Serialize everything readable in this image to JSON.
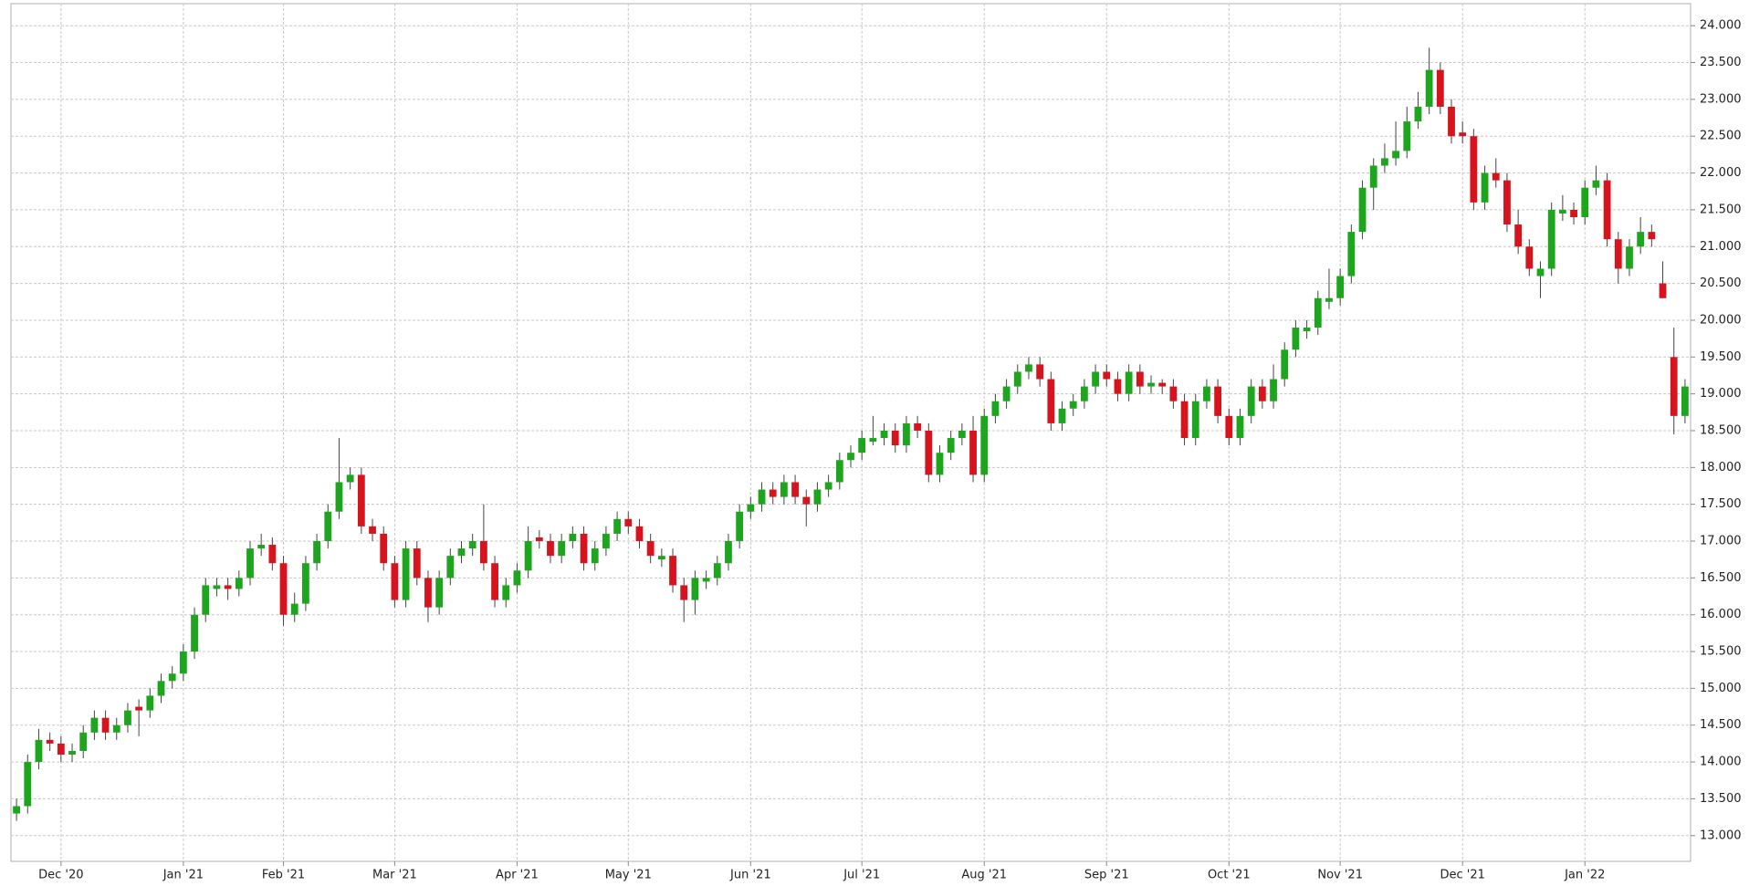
{
  "chart_data": {
    "type": "candlestick",
    "up_color": "#1ea51e",
    "down_color": "#d7141e",
    "grid": true,
    "categories": [
      null,
      null,
      null,
      null,
      "Dec '20",
      null,
      null,
      null,
      null,
      null,
      null,
      null,
      null,
      null,
      null,
      "Jan '21",
      null,
      null,
      null,
      null,
      null,
      null,
      null,
      null,
      "Feb '21",
      null,
      null,
      null,
      null,
      null,
      null,
      null,
      null,
      null,
      "Mar '21",
      null,
      null,
      null,
      null,
      null,
      null,
      null,
      null,
      null,
      null,
      "Apr '21",
      null,
      null,
      null,
      null,
      null,
      null,
      null,
      null,
      null,
      "May '21",
      null,
      null,
      null,
      null,
      null,
      null,
      null,
      null,
      null,
      null,
      "Jun '21",
      null,
      null,
      null,
      null,
      null,
      null,
      null,
      null,
      null,
      "Jul '21",
      null,
      null,
      null,
      null,
      null,
      null,
      null,
      null,
      null,
      null,
      "Aug '21",
      null,
      null,
      null,
      null,
      null,
      null,
      null,
      null,
      null,
      null,
      "Sep '21",
      null,
      null,
      null,
      null,
      null,
      null,
      null,
      null,
      null,
      null,
      "Oct '21",
      null,
      null,
      null,
      null,
      null,
      null,
      null,
      null,
      null,
      "Nov '21",
      null,
      null,
      null,
      null,
      null,
      null,
      null,
      null,
      null,
      null,
      "Dec '21",
      null,
      null,
      null,
      null,
      null,
      null,
      null,
      null,
      null,
      null,
      "Jan '22",
      null,
      null,
      null,
      null,
      null,
      null,
      null,
      null,
      null
    ],
    "open": [
      13300,
      13400,
      14000,
      14300,
      14250,
      14100,
      14150,
      14400,
      14600,
      14400,
      14500,
      14750,
      14700,
      14900,
      15100,
      15200,
      15500,
      16000,
      16350,
      16400,
      16350,
      16500,
      16900,
      16950,
      16700,
      16000,
      16150,
      16700,
      17000,
      17400,
      17800,
      17900,
      17200,
      17100,
      16700,
      16200,
      16900,
      16500,
      16100,
      16500,
      16800,
      16900,
      17000,
      16700,
      16200,
      16400,
      16600,
      17050,
      17000,
      16800,
      17000,
      17100,
      16700,
      16900,
      17100,
      17300,
      17200,
      17000,
      16750,
      16800,
      16400,
      16200,
      16450,
      16500,
      16700,
      17000,
      17400,
      17500,
      17700,
      17600,
      17800,
      17600,
      17500,
      17700,
      17800,
      18100,
      18200,
      18350,
      18400,
      18500,
      18300,
      18600,
      18500,
      17900,
      18200,
      18400,
      18500,
      17900,
      18700,
      18900,
      19100,
      19300,
      19400,
      19200,
      18600,
      18800,
      18900,
      19100,
      19300,
      19200,
      19000,
      19300,
      19100,
      19150,
      19100,
      18900,
      18400,
      18900,
      19100,
      18700,
      18400,
      18700,
      19100,
      18900,
      19200,
      19600,
      19850,
      19900,
      20250,
      20300,
      20600,
      21200,
      21800,
      22100,
      22200,
      22300,
      22700,
      22900,
      23400,
      22900,
      22550,
      22500,
      21600,
      22000,
      21900,
      21300,
      21000,
      20600,
      20700,
      21450,
      21500,
      21400,
      21800,
      21900,
      21100,
      20700,
      21000,
      21200,
      20500,
      19500,
      18700
    ],
    "high": [
      13500,
      14100,
      14450,
      14400,
      14350,
      14250,
      14500,
      14700,
      14700,
      14600,
      14800,
      14850,
      15000,
      15200,
      15300,
      15600,
      16100,
      16500,
      16500,
      16500,
      16600,
      17000,
      17100,
      17050,
      16800,
      16300,
      16800,
      17100,
      17500,
      18400,
      18000,
      18000,
      17300,
      17200,
      16800,
      17000,
      17000,
      16600,
      16600,
      16900,
      17000,
      17100,
      17500,
      16800,
      16500,
      16700,
      17200,
      17150,
      17100,
      17100,
      17200,
      17200,
      17000,
      17200,
      17400,
      17400,
      17300,
      17100,
      16900,
      16900,
      16500,
      16600,
      16600,
      16800,
      17100,
      17500,
      17600,
      17800,
      17800,
      17900,
      17900,
      17700,
      17800,
      17900,
      18200,
      18300,
      18500,
      18700,
      18600,
      18600,
      18700,
      18700,
      18600,
      18300,
      18500,
      18600,
      18700,
      18800,
      19000,
      19200,
      19400,
      19500,
      19500,
      19300,
      18900,
      19000,
      19200,
      19400,
      19400,
      19300,
      19400,
      19400,
      19250,
      19200,
      19200,
      19000,
      19000,
      19200,
      19200,
      18800,
      18800,
      19200,
      19200,
      19400,
      19700,
      20000,
      20000,
      20400,
      20700,
      20700,
      21300,
      21900,
      22200,
      22400,
      22700,
      22900,
      23100,
      23700,
      23500,
      23000,
      22700,
      22600,
      22100,
      22200,
      22000,
      21500,
      21100,
      20800,
      21600,
      21700,
      21600,
      21900,
      22100,
      22000,
      21200,
      21100,
      21400,
      21300,
      20800,
      19900,
      19200
    ],
    "low": [
      13200,
      13300,
      13900,
      14150,
      14000,
      14000,
      14050,
      14300,
      14300,
      14300,
      14400,
      14350,
      14600,
      14800,
      15000,
      15100,
      15400,
      15900,
      16250,
      16200,
      16250,
      16400,
      16800,
      16600,
      15850,
      15900,
      16050,
      16600,
      16900,
      17300,
      17700,
      17100,
      17000,
      16600,
      16100,
      16100,
      16400,
      15900,
      16000,
      16400,
      16700,
      16800,
      16600,
      16100,
      16100,
      16300,
      16500,
      16900,
      16700,
      16700,
      16900,
      16600,
      16600,
      16800,
      17000,
      17100,
      16900,
      16700,
      16650,
      16300,
      15900,
      16000,
      16350,
      16400,
      16600,
      16900,
      17300,
      17400,
      17500,
      17500,
      17500,
      17200,
      17400,
      17600,
      17700,
      18000,
      18100,
      18300,
      18300,
      18200,
      18200,
      18400,
      17800,
      17800,
      18100,
      18300,
      17800,
      17800,
      18600,
      18800,
      19000,
      19200,
      19100,
      18500,
      18500,
      18700,
      18800,
      19000,
      19100,
      18900,
      18900,
      19000,
      19000,
      19000,
      18800,
      18300,
      18300,
      18800,
      18600,
      18300,
      18300,
      18600,
      18800,
      18800,
      19100,
      19500,
      19750,
      19800,
      20150,
      20200,
      20500,
      21100,
      21500,
      22000,
      22100,
      22200,
      22600,
      22800,
      22800,
      22400,
      22400,
      21500,
      21500,
      21800,
      21200,
      20900,
      20600,
      20300,
      20600,
      21350,
      21300,
      21300,
      21700,
      21000,
      20500,
      20600,
      20900,
      21000,
      20300,
      18450,
      18600
    ],
    "close": [
      13400,
      14000,
      14300,
      14250,
      14100,
      14150,
      14400,
      14600,
      14400,
      14500,
      14700,
      14700,
      14900,
      15100,
      15200,
      15500,
      16000,
      16400,
      16400,
      16350,
      16500,
      16900,
      16950,
      16700,
      16000,
      16150,
      16700,
      17000,
      17400,
      17800,
      17900,
      17200,
      17100,
      16700,
      16200,
      16900,
      16500,
      16100,
      16500,
      16800,
      16900,
      17000,
      16700,
      16200,
      16400,
      16600,
      17000,
      17000,
      16800,
      17000,
      17100,
      16700,
      16900,
      17100,
      17300,
      17200,
      17000,
      16800,
      16800,
      16400,
      16200,
      16500,
      16500,
      16700,
      17000,
      17400,
      17500,
      17700,
      17600,
      17800,
      17600,
      17500,
      17700,
      17800,
      18100,
      18200,
      18400,
      18400,
      18500,
      18300,
      18600,
      18500,
      17900,
      18200,
      18400,
      18500,
      17900,
      18700,
      18900,
      19100,
      19300,
      19400,
      19200,
      18600,
      18800,
      18900,
      19100,
      19300,
      19200,
      19000,
      19300,
      19100,
      19150,
      19100,
      18900,
      18400,
      18900,
      19100,
      18700,
      18400,
      18700,
      19100,
      18900,
      19200,
      19600,
      19900,
      19900,
      20300,
      20300,
      20600,
      21200,
      21800,
      22100,
      22200,
      22300,
      22700,
      22900,
      23400,
      22900,
      22500,
      22500,
      21600,
      22000,
      21900,
      21300,
      21000,
      20700,
      20700,
      21500,
      21500,
      21400,
      21800,
      21900,
      21100,
      20700,
      21000,
      21200,
      21100,
      20300,
      18700,
      19100
    ],
    "ylim": [
      12650,
      24300
    ],
    "yticks": [
      {
        "value": 13000,
        "label": "13.000"
      },
      {
        "value": 13500,
        "label": "13.500"
      },
      {
        "value": 14000,
        "label": "14.000"
      },
      {
        "value": 14500,
        "label": "14.500"
      },
      {
        "value": 15000,
        "label": "15.000"
      },
      {
        "value": 15500,
        "label": "15.500"
      },
      {
        "value": 16000,
        "label": "16.000"
      },
      {
        "value": 16500,
        "label": "16.500"
      },
      {
        "value": 17000,
        "label": "17.000"
      },
      {
        "value": 17500,
        "label": "17.500"
      },
      {
        "value": 18000,
        "label": "18.000"
      },
      {
        "value": 18500,
        "label": "18.500"
      },
      {
        "value": 19000,
        "label": "19.000"
      },
      {
        "value": 19500,
        "label": "19.500"
      },
      {
        "value": 20000,
        "label": "20.000"
      },
      {
        "value": 20500,
        "label": "20.500"
      },
      {
        "value": 21000,
        "label": "21.000"
      },
      {
        "value": 21500,
        "label": "21.500"
      },
      {
        "value": 22000,
        "label": "22.000"
      },
      {
        "value": 22500,
        "label": "22.500"
      },
      {
        "value": 23000,
        "label": "23.000"
      },
      {
        "value": 23500,
        "label": "23.500"
      },
      {
        "value": 24000,
        "label": "24.000"
      }
    ]
  }
}
